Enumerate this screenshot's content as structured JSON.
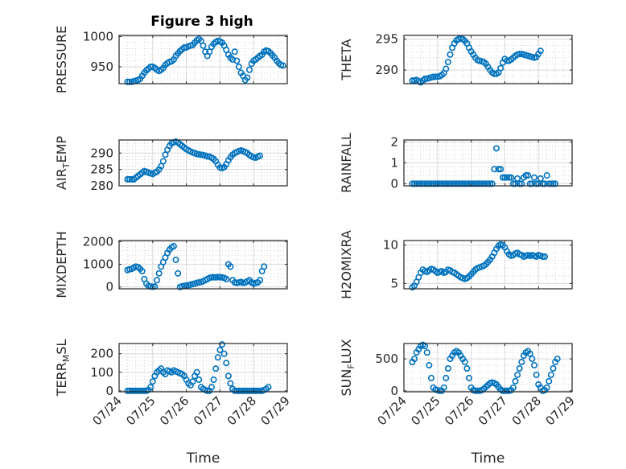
{
  "figure": {
    "title": "Figure 3 high",
    "xlabel": "Time"
  },
  "chart_data": [
    {
      "type": "scatter",
      "ylabel": "PRESSURE",
      "ylim": [
        922,
        1002
      ],
      "yticks": [
        950,
        1000
      ],
      "xlim": [
        "07/24",
        "07/29"
      ],
      "xticks": [
        "07/24",
        "07/25",
        "07/26",
        "07/27",
        "07/28",
        "07/29"
      ],
      "grid": true,
      "x_start": "07/24 06:00",
      "x_step_hours": 1.5,
      "y": [
        925,
        925,
        925,
        926,
        927,
        928,
        930,
        935,
        940,
        944,
        947,
        950,
        950,
        948,
        945,
        943,
        945,
        948,
        953,
        956,
        958,
        959,
        962,
        968,
        972,
        976,
        979,
        982,
        982,
        984,
        985,
        986,
        990,
        994,
        996,
        993,
        985,
        975,
        968,
        975,
        983,
        988,
        991,
        993,
        992,
        990,
        985,
        978,
        970,
        965,
        962,
        975,
        960,
        950,
        940,
        935,
        928,
        932,
        945,
        955,
        960,
        962,
        965,
        968,
        970,
        975,
        977,
        976,
        973,
        969,
        965,
        960,
        956,
        953,
        952
      ]
    },
    {
      "type": "scatter",
      "ylabel": "THETA",
      "ylim": [
        287.8,
        295.6
      ],
      "yticks": [
        290,
        295
      ],
      "xlim": [
        "07/24",
        "07/29"
      ],
      "xticks": [
        "07/24",
        "07/25",
        "07/26",
        "07/27",
        "07/28",
        "07/29"
      ],
      "grid": true,
      "x_start": "07/24 06:00",
      "x_step_hours": 1.5,
      "y": [
        288.3,
        288.3,
        288.4,
        288.2,
        288.0,
        288.3,
        288.6,
        288.6,
        288.7,
        288.8,
        288.9,
        288.9,
        288.9,
        289.0,
        289.2,
        289.5,
        290.2,
        291.3,
        292.5,
        293.6,
        294.3,
        294.8,
        295.0,
        295.1,
        295.0,
        294.7,
        294.3,
        293.6,
        293.0,
        292.5,
        292.0,
        291.6,
        291.5,
        291.4,
        291.3,
        291.0,
        290.5,
        290.0,
        289.6,
        289.4,
        289.4,
        289.6,
        290.3,
        291.2,
        291.8,
        291.5,
        291.5,
        291.7,
        292.0,
        292.3,
        292.5,
        292.6,
        292.6,
        292.5,
        292.4,
        292.3,
        292.2,
        292.1,
        292.0,
        292.1,
        292.6,
        293.1
      ]
    },
    {
      "type": "scatter",
      "ylabel": "AIR",
      "ylabel_sub": "T",
      "ylabel_rest": "EMP",
      "ylim": [
        280,
        294
      ],
      "yticks": [
        280,
        285,
        290
      ],
      "xlim": [
        "07/24",
        "07/29"
      ],
      "xticks": [
        "07/24",
        "07/25",
        "07/26",
        "07/27",
        "07/28",
        "07/29"
      ],
      "grid": true,
      "x_start": "07/24 06:00",
      "x_step_hours": 1.5,
      "y": [
        282,
        282,
        282,
        282,
        282.5,
        283,
        283.5,
        284,
        284.5,
        284.3,
        284,
        283.8,
        283.6,
        284,
        284.3,
        285,
        286,
        287.5,
        289.5,
        291,
        292.2,
        293,
        293.3,
        293.5,
        293.2,
        292.7,
        292.2,
        291.7,
        291.2,
        290.8,
        290.5,
        290.2,
        290,
        289.7,
        289.6,
        289.5,
        289.4,
        289.2,
        289,
        288.9,
        288.6,
        288.2,
        287.5,
        286.4,
        285.6,
        285.4,
        285.7,
        286.6,
        287.8,
        288.7,
        289.5,
        290,
        290.3,
        290.6,
        290.8,
        290.6,
        290.3,
        290,
        289.4,
        289,
        288.7,
        288.6,
        288.9,
        289.2
      ]
    },
    {
      "type": "scatter",
      "ylabel": "RAINFALL",
      "ylim": [
        -0.1,
        2.1
      ],
      "yticks": [
        0,
        1,
        2
      ],
      "xlim": [
        "07/24",
        "07/29"
      ],
      "xticks": [
        "07/24",
        "07/25",
        "07/26",
        "07/27",
        "07/28",
        "07/29"
      ],
      "grid": true,
      "x_start": "07/24 06:00",
      "x_step_hours": 1.5,
      "y": [
        0,
        0,
        0,
        0,
        0,
        0,
        0,
        0,
        0,
        0,
        0,
        0,
        0,
        0,
        0,
        0,
        0,
        0,
        0,
        0,
        0,
        0,
        0,
        0,
        0,
        0,
        0,
        0,
        0,
        0,
        0,
        0,
        0,
        0,
        0,
        0,
        0,
        0,
        0,
        0.7,
        1.7,
        0.7,
        0.7,
        0.3,
        0.3,
        0.3,
        0.3,
        0.3,
        0,
        0,
        0.25,
        0,
        0,
        0.3,
        0.4,
        0.4,
        0,
        0,
        0.3,
        0,
        0,
        0.25,
        0,
        0,
        0.4,
        0,
        0,
        0,
        0
      ]
    },
    {
      "type": "scatter",
      "ylabel": "MIXDEPTH",
      "ylim": [
        -80,
        2050
      ],
      "yticks": [
        0,
        1000,
        2000
      ],
      "xlim": [
        "07/24",
        "07/29"
      ],
      "xticks": [
        "07/24",
        "07/25",
        "07/26",
        "07/27",
        "07/28",
        "07/29"
      ],
      "grid": true,
      "x_start": "07/24 06:00",
      "x_step_hours": 1.5,
      "y": [
        750,
        780,
        800,
        850,
        900,
        880,
        800,
        700,
        350,
        150,
        50,
        20,
        10,
        20,
        300,
        600,
        900,
        1100,
        1300,
        1500,
        1650,
        1750,
        1800,
        1200,
        600,
        0,
        30,
        50,
        60,
        80,
        100,
        130,
        150,
        180,
        200,
        220,
        250,
        300,
        350,
        400,
        420,
        430,
        420,
        440,
        430,
        420,
        400,
        350,
        1000,
        900,
        300,
        200,
        180,
        200,
        220,
        180,
        200,
        250,
        300,
        200,
        150,
        180,
        200,
        300,
        700,
        900
      ]
    },
    {
      "type": "scatter",
      "ylabel": "H2OMIXRA",
      "ylim": [
        4.3,
        10.6
      ],
      "yticks": [
        5,
        10
      ],
      "xlim": [
        "07/24",
        "07/29"
      ],
      "xticks": [
        "07/24",
        "07/25",
        "07/26",
        "07/27",
        "07/28",
        "07/29"
      ],
      "grid": true,
      "x_start": "07/24 06:00",
      "x_step_hours": 1.5,
      "y": [
        4.5,
        4.7,
        5.2,
        5.8,
        6.4,
        6.8,
        6.6,
        6.5,
        6.7,
        6.9,
        6.8,
        6.6,
        6.4,
        6.5,
        6.6,
        6.4,
        6.5,
        6.8,
        6.7,
        6.5,
        6.4,
        6.2,
        6.0,
        5.8,
        5.7,
        5.6,
        5.7,
        5.9,
        6.2,
        6.5,
        6.8,
        7.0,
        7.1,
        7.2,
        7.3,
        7.5,
        7.8,
        8.1,
        8.5,
        9.0,
        9.5,
        9.9,
        10.1,
        10.0,
        9.7,
        9.2,
        8.8,
        8.6,
        8.7,
        8.9,
        9.0,
        8.8,
        8.7,
        8.5,
        8.6,
        8.7,
        8.6,
        8.7,
        8.6,
        8.5,
        8.7,
        8.6,
        8.5,
        8.5
      ]
    },
    {
      "type": "scatter",
      "ylabel": "TERR",
      "ylabel_sub": "M",
      "ylabel_rest": "SL",
      "ylim": [
        -5,
        255
      ],
      "yticks": [
        0,
        100,
        200
      ],
      "xlim": [
        "07/24",
        "07/29"
      ],
      "xticks": [
        "07/24",
        "07/25",
        "07/26",
        "07/27",
        "07/28",
        "07/29"
      ],
      "grid": true,
      "x_start": "07/24 06:00",
      "x_step_hours": 1.5,
      "y": [
        0,
        0,
        0,
        0,
        0,
        0,
        0,
        0,
        0,
        0,
        5,
        20,
        50,
        80,
        100,
        110,
        120,
        100,
        90,
        110,
        105,
        100,
        110,
        105,
        100,
        95,
        90,
        80,
        60,
        40,
        30,
        50,
        80,
        100,
        60,
        20,
        10,
        5,
        0,
        0,
        20,
        60,
        120,
        180,
        220,
        250,
        200,
        150,
        80,
        40,
        10,
        0,
        0,
        0,
        0,
        0,
        0,
        0,
        0,
        0,
        0,
        0,
        0,
        0,
        0,
        5,
        10,
        20
      ]
    },
    {
      "type": "scatter",
      "ylabel": "SUN",
      "ylabel_sub": "F",
      "ylabel_rest": "LUX",
      "ylim": [
        -15,
        740
      ],
      "yticks": [
        0,
        500
      ],
      "xlim": [
        "07/24",
        "07/29"
      ],
      "xticks": [
        "07/24",
        "07/25",
        "07/26",
        "07/27",
        "07/28",
        "07/29"
      ],
      "grid": true,
      "x_start": "07/24 06:00",
      "x_step_hours": 1.5,
      "y": [
        450,
        500,
        600,
        650,
        700,
        720,
        700,
        600,
        400,
        200,
        50,
        20,
        10,
        0,
        0,
        50,
        200,
        350,
        500,
        550,
        600,
        620,
        600,
        550,
        500,
        450,
        350,
        200,
        50,
        10,
        0,
        0,
        0,
        10,
        30,
        60,
        90,
        120,
        130,
        120,
        100,
        60,
        20,
        0,
        0,
        0,
        0,
        10,
        50,
        150,
        250,
        350,
        450,
        550,
        600,
        620,
        580,
        500,
        400,
        250,
        100,
        50,
        0,
        10,
        50,
        150,
        250,
        350,
        450,
        500
      ]
    }
  ]
}
